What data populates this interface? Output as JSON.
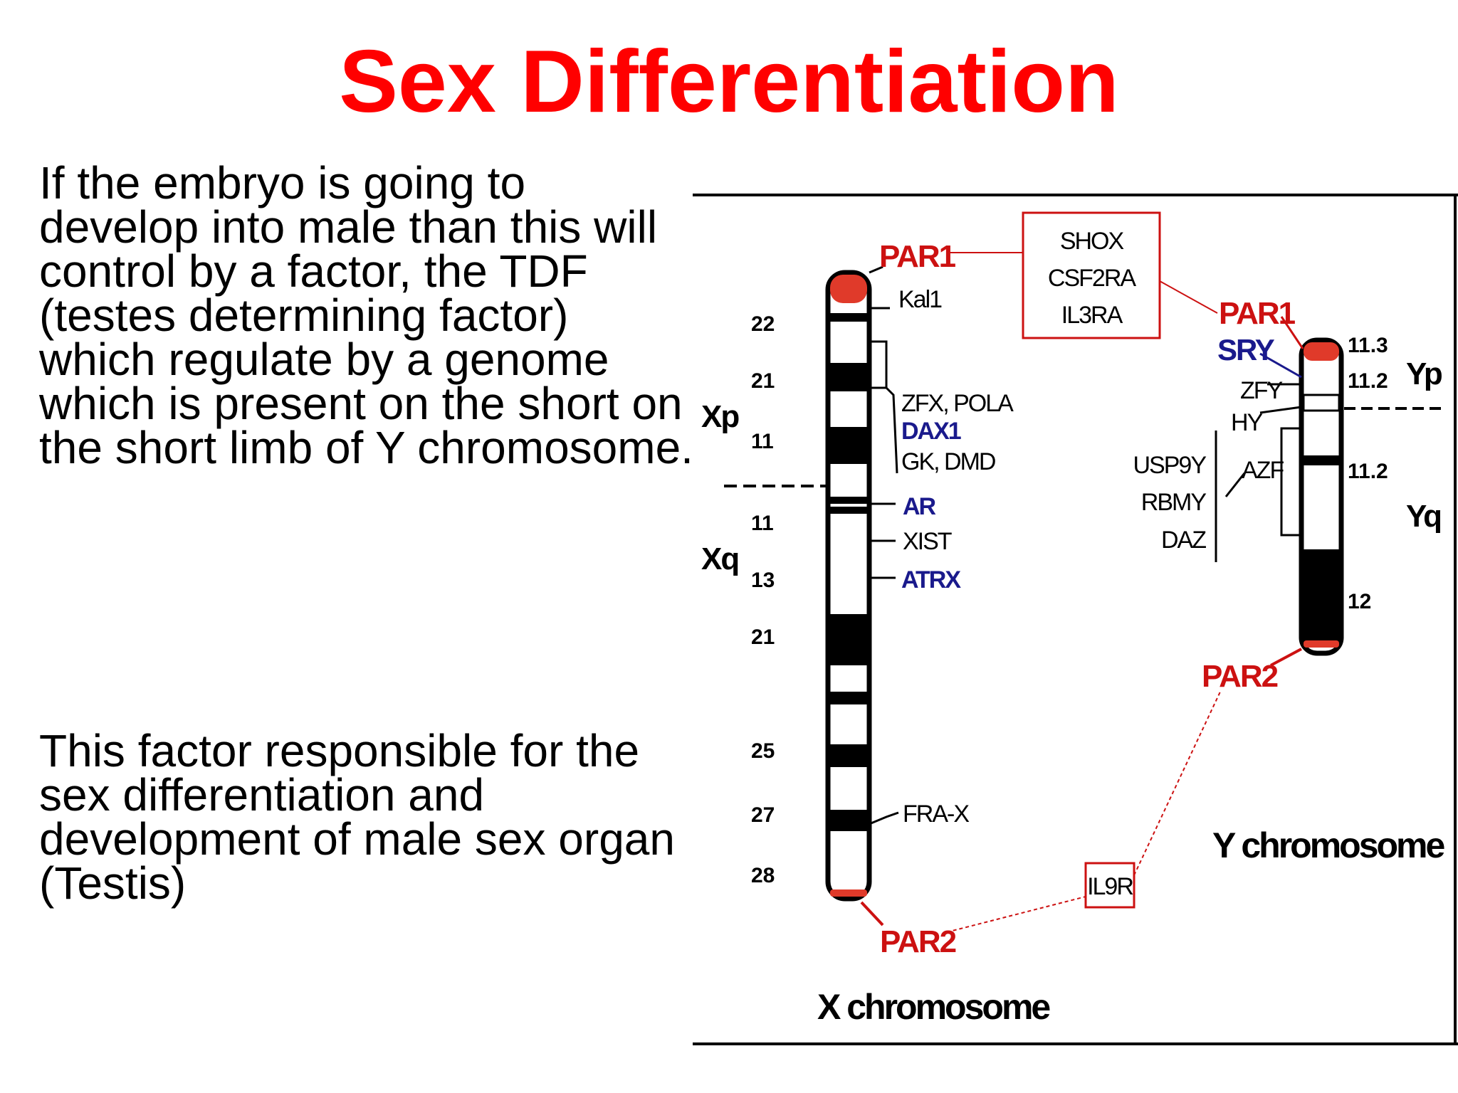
{
  "slide": {
    "title": "Sex Differentiation",
    "paragraph_1": "If the embryo is going to develop into male than this will control by a factor, the TDF (testes determining factor) which regulate by a genome which is present on the short on the short limb of Y chromosome.",
    "paragraph_2": "This factor responsible for the sex differentiation and development of male sex organ (Testis)"
  },
  "diagram": {
    "x_chromosome": {
      "title": "X chromosome",
      "arm_short": "Xp",
      "arm_long": "Xq",
      "par1": "PAR1",
      "par2": "PAR2",
      "bands": [
        "22",
        "21",
        "11",
        "11",
        "13",
        "21",
        "25",
        "27",
        "28"
      ],
      "genes": {
        "kal1": "Kal1",
        "zfx_pola": "ZFX, POLA",
        "dax1": "DAX1",
        "gk_dmd": "GK, DMD",
        "ar": "AR",
        "xist": "XIST",
        "atrx": "ATRX",
        "frax": "FRA-X"
      }
    },
    "y_chromosome": {
      "title": "Y chromosome",
      "arm_short": "Yp",
      "arm_long": "Yq",
      "par1": "PAR1",
      "par2": "PAR2",
      "bands": [
        "11.3",
        "11.2",
        "11.2",
        "12"
      ],
      "genes": {
        "sry": "SRY",
        "zfy": "ZFY",
        "hy": "HY",
        "usp9y": "USP9Y",
        "rbmy": "RBMY",
        "daz": "DAZ",
        "azf": "AZF"
      }
    },
    "par1_genes": [
      "SHOX",
      "CSF2RA",
      "IL3RA"
    ],
    "par2_gene": "IL9R",
    "colors": {
      "par_red": "#cc1111",
      "gene_blue": "#1a1a8c",
      "title_red": "#ff0000"
    }
  }
}
